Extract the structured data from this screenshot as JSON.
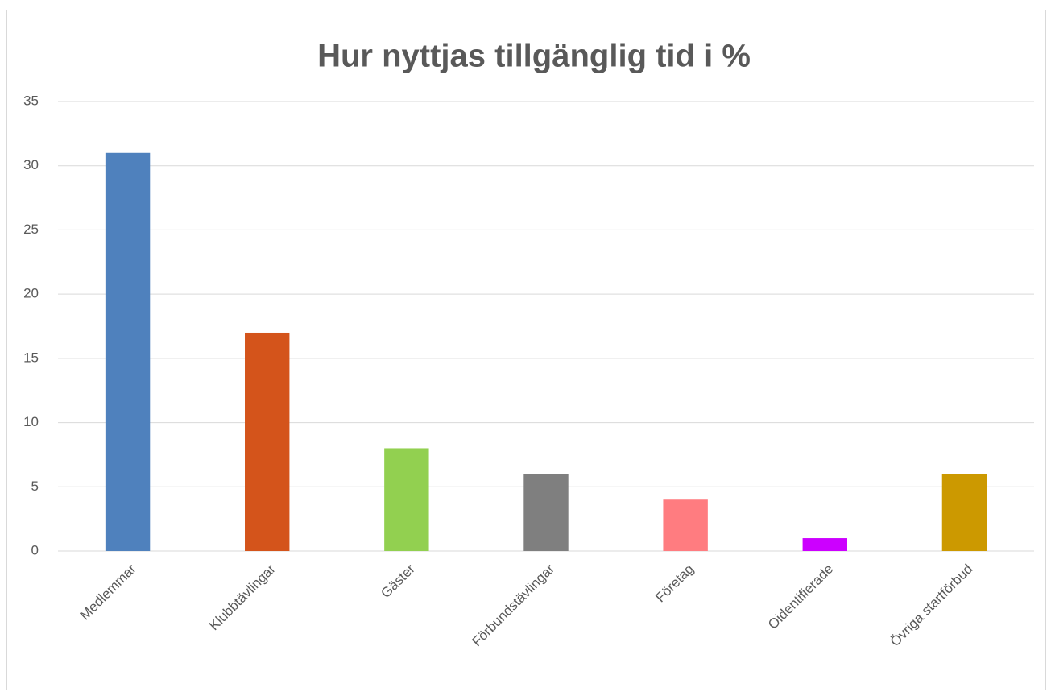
{
  "chart_data": {
    "type": "bar",
    "title": "Hur nyttjas tillgänglig tid i %",
    "categories": [
      "Medlemmar",
      "Klubbtävlingar",
      "Gäster",
      "Förbundstävlingar",
      "Företag",
      "Oidentifierade",
      "Övriga startförbud"
    ],
    "values": [
      31,
      17,
      8,
      6,
      4,
      1,
      6
    ],
    "colors": [
      "#4f81bd",
      "#d4541b",
      "#92d050",
      "#7f7f7f",
      "#ff7c80",
      "#cc00ff",
      "#cc9900"
    ],
    "ylim": [
      0,
      35
    ],
    "yticks": [
      0,
      5,
      10,
      15,
      20,
      25,
      30,
      35
    ],
    "grid": true
  }
}
